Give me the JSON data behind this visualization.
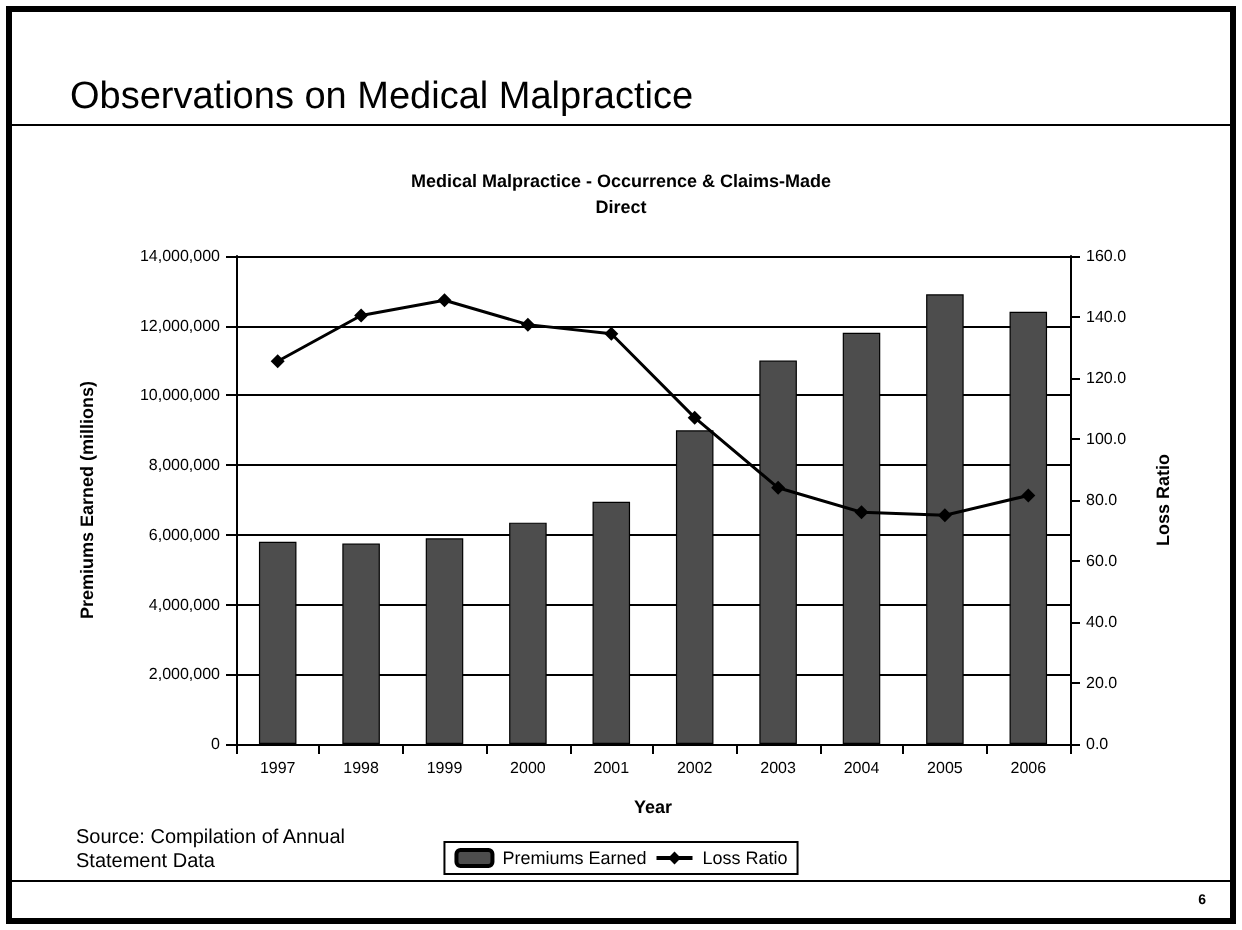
{
  "chart_data": {
    "type": "bar",
    "title": "Observations on Medical Malpractice",
    "subtitle": "Medical Malpractice - Occurrence & Claims-Made\nDirect",
    "xlabel": "Year",
    "ylabel": "Premiums Earned (millions)",
    "y2label": "Loss Ratio",
    "categories": [
      "1997",
      "1998",
      "1999",
      "2000",
      "2001",
      "2002",
      "2003",
      "2004",
      "2005",
      "2006"
    ],
    "series": [
      {
        "name": "Premiums Earned",
        "color": "#4d4d4d",
        "values": [
          5800000,
          5750000,
          5900000,
          6350000,
          6950000,
          9000000,
          11000000,
          11800000,
          12900000,
          12400000
        ]
      },
      {
        "name": "Loss Ratio",
        "type": "line",
        "axis": "y2",
        "color": "#000000",
        "values": [
          125.5,
          140.5,
          145.5,
          137.5,
          134.5,
          107,
          84,
          76,
          75,
          81.5
        ]
      }
    ],
    "ylim": [
      0,
      14000000
    ],
    "yticks": [
      {
        "value": 0,
        "label": "0"
      },
      {
        "value": 2000000,
        "label": "2,000,000"
      },
      {
        "value": 4000000,
        "label": "4,000,000"
      },
      {
        "value": 6000000,
        "label": "6,000,000"
      },
      {
        "value": 8000000,
        "label": "8,000,000"
      },
      {
        "value": 10000000,
        "label": "10,000,000"
      },
      {
        "value": 12000000,
        "label": "12,000,000"
      },
      {
        "value": 14000000,
        "label": "14,000,000"
      }
    ],
    "y2lim": [
      0,
      160
    ],
    "y2ticks": [
      {
        "value": 0,
        "label": "0.0"
      },
      {
        "value": 20,
        "label": "20.0"
      },
      {
        "value": 40,
        "label": "40.0"
      },
      {
        "value": 60,
        "label": "60.0"
      },
      {
        "value": 80,
        "label": "80.0"
      },
      {
        "value": 100,
        "label": "100.0"
      },
      {
        "value": 120,
        "label": "120.0"
      },
      {
        "value": 140,
        "label": "140.0"
      },
      {
        "value": 160,
        "label": "160.0"
      }
    ],
    "grid": "y",
    "legend": "bottom",
    "marker": "diamond",
    "line_style": "solid",
    "annotations": [
      "Source: Compilation of Annual\nStatement Data",
      "6"
    ]
  }
}
